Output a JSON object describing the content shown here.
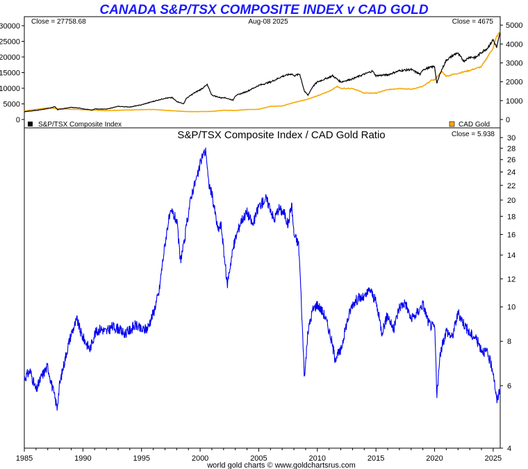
{
  "chart_data": [
    {
      "type": "line",
      "title": "CANADA S&P/TSX COMPOSITE INDEX v CAD GOLD",
      "date_label": "Aug-08  2025",
      "close_left": "Close = 27758.68",
      "close_right": "Close = 4675",
      "xlim": [
        1985,
        2025.6
      ],
      "ylim_left": [
        0,
        32000
      ],
      "ylim_right": [
        0,
        5300
      ],
      "yticks_left": [
        "0",
        "5000",
        "10000",
        "15000",
        "20000",
        "25000",
        "30000"
      ],
      "yticks_right": [
        "0",
        "1000",
        "2000",
        "3000",
        "4000",
        "5000"
      ],
      "legend": {
        "left": "S&P/TSX Composite Index",
        "right": "CAD Gold"
      },
      "colors": {
        "tsx": "#000000",
        "gold": "#f5a800"
      },
      "series": [
        {
          "name": "S&P/TSX Composite Index",
          "axis": "left",
          "x": [
            1985,
            1986,
            1987,
            1987.6,
            1987.85,
            1988,
            1989,
            1989.8,
            1990,
            1990.8,
            1991,
            1992,
            1993,
            1994,
            1995,
            1996,
            1997,
            1997.6,
            1998,
            1998.6,
            1998.8,
            1999,
            1999.5,
            2000,
            2000.6,
            2001,
            2001.8,
            2002,
            2002.8,
            2003,
            2004,
            2005,
            2006,
            2006.3,
            2007,
            2007.8,
            2008,
            2008.5,
            2008.9,
            2009.2,
            2009.6,
            2010,
            2011,
            2011.3,
            2012,
            2013,
            2014,
            2014.7,
            2015,
            2016,
            2017,
            2018,
            2018.8,
            2019,
            2020,
            2020.2,
            2020.5,
            2021,
            2021.9,
            2022,
            2022.5,
            2023,
            2023.5,
            2024,
            2024.5,
            2025,
            2025.3,
            2025.6
          ],
          "y": [
            2500,
            2900,
            3500,
            4100,
            3100,
            3300,
            3900,
            3600,
            3400,
            3000,
            3400,
            3300,
            4200,
            4000,
            4700,
            5800,
            6800,
            7000,
            5800,
            5000,
            6700,
            7200,
            8500,
            9500,
            11100,
            7800,
            6900,
            7100,
            6200,
            7600,
            9000,
            10900,
            12000,
            12500,
            13800,
            14600,
            14000,
            14500,
            9000,
            7800,
            10500,
            12000,
            13500,
            14000,
            12000,
            13000,
            14500,
            15500,
            14000,
            14300,
            15600,
            16000,
            14400,
            16000,
            17000,
            11500,
            15000,
            19000,
            21300,
            21000,
            18700,
            20000,
            19800,
            21500,
            22800,
            25500,
            23000,
            27758.68
          ]
        },
        {
          "name": "CAD Gold",
          "axis": "right",
          "x": [
            1985,
            1987,
            1988,
            1990,
            1992,
            1993,
            1995,
            1996,
            1998,
            1999,
            2000,
            2001,
            2002,
            2003,
            2004,
            2005,
            2006,
            2007,
            2008,
            2009,
            2010,
            2011,
            2011.7,
            2012,
            2013,
            2014,
            2015,
            2016,
            2017,
            2018,
            2019,
            2019.8,
            2020,
            2020.6,
            2021,
            2022,
            2023,
            2024,
            2024.5,
            2025,
            2025.3,
            2025.6
          ],
          "y": [
            450,
            620,
            560,
            520,
            470,
            490,
            520,
            530,
            450,
            420,
            420,
            430,
            490,
            480,
            530,
            540,
            700,
            720,
            900,
            1050,
            1250,
            1500,
            1750,
            1650,
            1650,
            1400,
            1400,
            1580,
            1650,
            1600,
            1750,
            2100,
            2100,
            2550,
            2300,
            2450,
            2600,
            2800,
            3300,
            3800,
            4400,
            4675
          ]
        }
      ]
    },
    {
      "type": "line",
      "title": "S&P/TSX Composite Index  /  CAD Gold Ratio",
      "close": "Close = 5.938",
      "xlim": [
        1985,
        2025.6
      ],
      "ylim": [
        4,
        30
      ],
      "yscale": "log",
      "yticks": [
        "4",
        "6",
        "8",
        "10",
        "12",
        "14",
        "16",
        "18",
        "20",
        "22",
        "24",
        "26",
        "28",
        "30"
      ],
      "xticks": [
        "1985",
        "1990",
        "1995",
        "2000",
        "2005",
        "2010",
        "2015",
        "2020",
        "2025"
      ],
      "colors": {
        "ratio": "#0000ee"
      },
      "series": [
        {
          "name": "S&P/TSX Composite Index  /  CAD Gold Ratio",
          "x": [
            1985,
            1985.5,
            1986,
            1986.5,
            1987,
            1987.4,
            1987.8,
            1988,
            1988.5,
            1989,
            1989.5,
            1989.8,
            1990,
            1990.6,
            1991,
            1991.5,
            1992,
            1992.5,
            1993,
            1993.5,
            1994,
            1994.5,
            1995,
            1995.5,
            1996,
            1996.5,
            1997,
            1997.3,
            1997.6,
            1998,
            1998.3,
            1998.6,
            1998.9,
            1999.3,
            1999.8,
            2000.2,
            2000.5,
            2000.7,
            2001,
            2001.5,
            2001.8,
            2002,
            2002.3,
            2002.8,
            2003,
            2003.5,
            2004,
            2004.5,
            2005,
            2005.6,
            2006,
            2006.3,
            2006.7,
            2007.2,
            2007.5,
            2007.8,
            2008,
            2008.4,
            2008.7,
            2008.9,
            2009.2,
            2009.6,
            2010,
            2010.6,
            2011,
            2011.5,
            2012,
            2012.5,
            2013,
            2013.5,
            2014,
            2014.5,
            2015,
            2015.5,
            2016,
            2016.5,
            2017,
            2017.5,
            2018,
            2018.5,
            2019,
            2019.5,
            2019.8,
            2020,
            2020.2,
            2020.5,
            2021,
            2021.5,
            2022,
            2022.5,
            2023,
            2023.5,
            2024,
            2024.5,
            2025,
            2025.3,
            2025.6
          ],
          "y": [
            6.3,
            6.6,
            5.8,
            6.4,
            6.8,
            5.9,
            5.2,
            6.0,
            7.2,
            8.4,
            9.2,
            8.5,
            8.2,
            7.6,
            8.4,
            8.7,
            8.5,
            8.8,
            8.7,
            8.4,
            8.6,
            8.9,
            8.6,
            8.7,
            9.6,
            11.0,
            15.0,
            17.5,
            18.5,
            17.5,
            13.5,
            14.8,
            17.5,
            21.0,
            23.5,
            26.8,
            27.5,
            22.5,
            20.8,
            16.5,
            17.0,
            14.5,
            11.5,
            14.5,
            15.5,
            17.5,
            18.5,
            17.0,
            19.2,
            20.2,
            19.0,
            17.5,
            19.0,
            18.3,
            17.0,
            19.5,
            16.0,
            15.0,
            9.0,
            6.2,
            8.5,
            9.8,
            10.2,
            9.5,
            8.6,
            7.2,
            7.5,
            9.0,
            10.2,
            10.6,
            10.6,
            11.2,
            10.3,
            8.5,
            9.5,
            8.6,
            10.0,
            10.3,
            9.2,
            9.6,
            10.2,
            9.0,
            8.8,
            8.8,
            5.6,
            7.4,
            8.6,
            8.2,
            9.6,
            9.0,
            8.4,
            8.2,
            7.6,
            7.4,
            6.6,
            5.4,
            5.938
          ]
        }
      ]
    }
  ],
  "footer": "world gold charts © www.goldchartsrus.com"
}
